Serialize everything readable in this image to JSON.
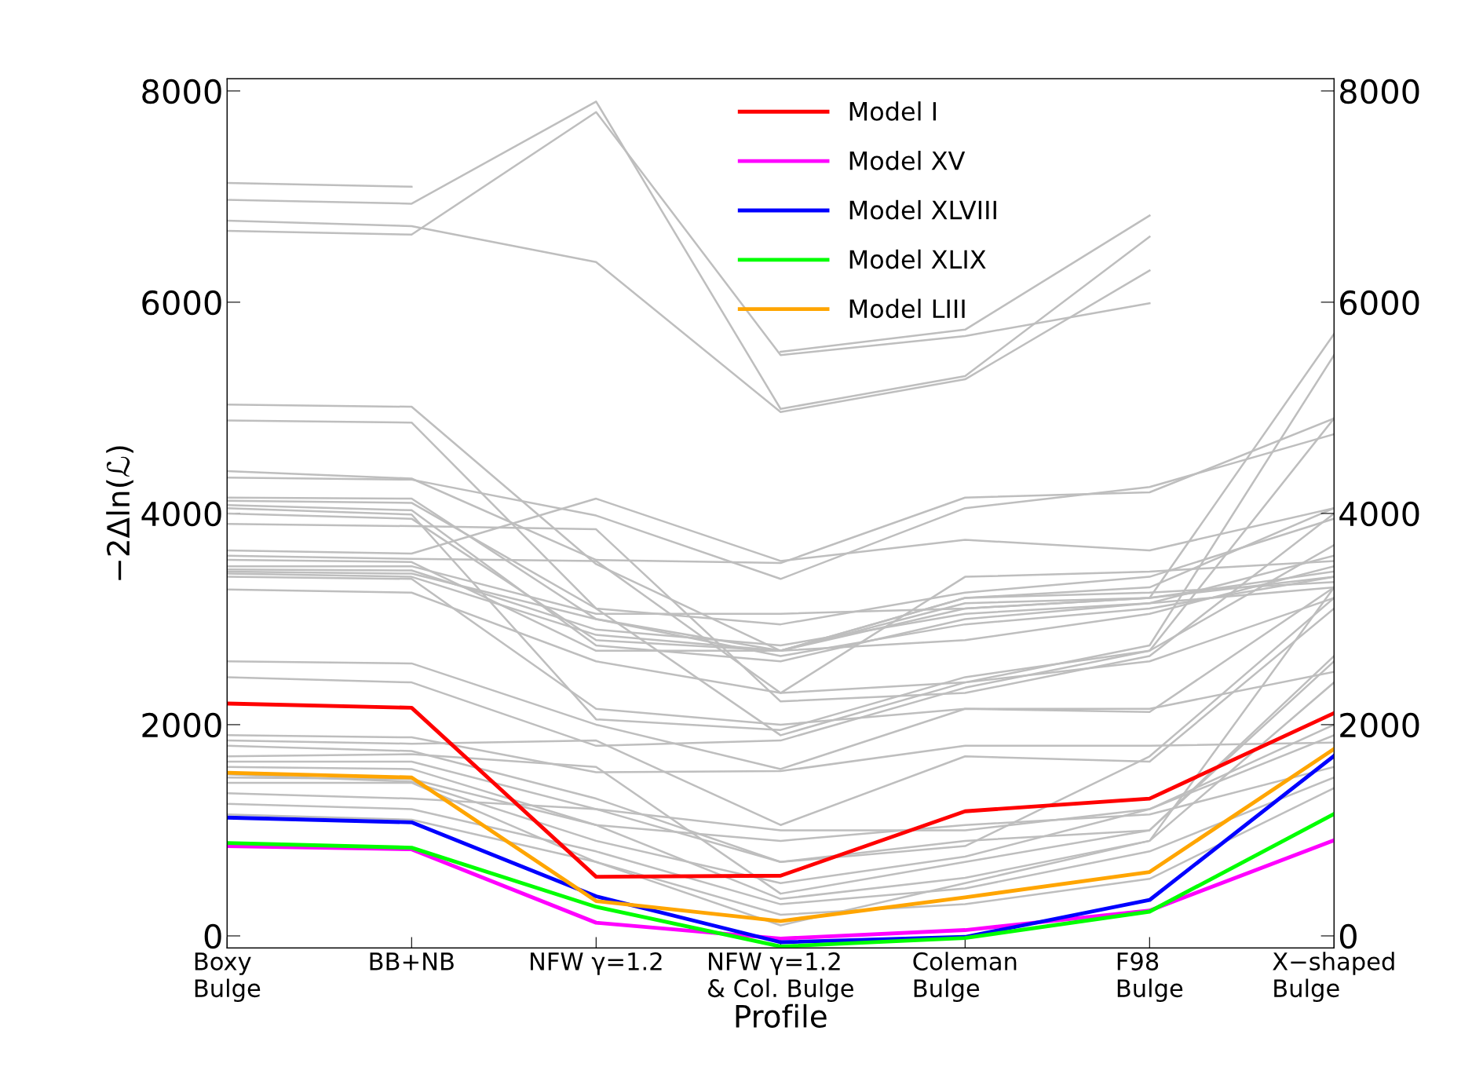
{
  "chart_data": {
    "type": "line",
    "xlabel": "Profile",
    "ylabel": "−2Δln(ℒ)",
    "categories": [
      "Boxy\nBulge",
      "BB+NB",
      "NFW γ=1.2",
      "NFW γ=1.2\n& Col. Bulge",
      "Coleman\nBulge",
      "F98\nBulge",
      "X−shaped\nBulge"
    ],
    "ylim": [
      -115,
      8115
    ],
    "yticks": [
      0,
      2000,
      4000,
      6000,
      8000
    ],
    "y2lim": [
      -115,
      8115
    ],
    "y2ticks": [
      0,
      2000,
      4000,
      6000,
      8000
    ],
    "grid": false,
    "legend": "top",
    "marker": "none",
    "line_style": "solid",
    "series": [
      {
        "color": "#bebebe",
        "values": [
          7129,
          7093,
          null,
          5530,
          5740,
          6820,
          null
        ]
      },
      {
        "color": "#bebebe",
        "values": [
          6969,
          6933,
          7900,
          4990,
          5300,
          6620,
          null
        ]
      },
      {
        "color": "#bebebe",
        "values": [
          6773,
          6720,
          6380,
          4960,
          5270,
          6300,
          null
        ]
      },
      {
        "color": "#bebebe",
        "values": [
          6676,
          6640,
          7800,
          5500,
          5680,
          5990,
          null
        ]
      },
      {
        "color": "#bebebe",
        "values": [
          5030,
          5010,
          3520,
          2700,
          3100,
          3200,
          5700
        ]
      },
      {
        "color": "#bebebe",
        "values": [
          4880,
          4860,
          3100,
          1900,
          2400,
          2750,
          5500
        ]
      },
      {
        "color": "#bebebe",
        "values": [
          4400,
          4330,
          3560,
          3530,
          4150,
          4200,
          4900
        ]
      },
      {
        "color": "#bebebe",
        "values": [
          4340,
          4320,
          3980,
          3380,
          4050,
          4250,
          4750
        ]
      },
      {
        "color": "#bebebe",
        "values": [
          4150,
          4140,
          3000,
          2700,
          3200,
          3300,
          4050
        ]
      },
      {
        "color": "#bebebe",
        "values": [
          4120,
          4100,
          3100,
          2950,
          3250,
          3400,
          3950
        ]
      },
      {
        "color": "#bebebe",
        "values": [
          4080,
          4030,
          2750,
          2600,
          3000,
          3150,
          3600
        ]
      },
      {
        "color": "#bebebe",
        "values": [
          4050,
          3990,
          2050,
          1950,
          2450,
          2700,
          4900
        ]
      },
      {
        "color": "#bebebe",
        "values": [
          4000,
          3950,
          2800,
          2700,
          3150,
          3200,
          3400
        ]
      },
      {
        "color": "#bebebe",
        "values": [
          3900,
          3880,
          3850,
          2220,
          2300,
          2650,
          4000
        ]
      },
      {
        "color": "#bebebe",
        "values": [
          3650,
          3620,
          4140,
          3550,
          3750,
          3650,
          4050
        ]
      },
      {
        "color": "#bebebe",
        "values": [
          3600,
          3570,
          3550,
          2300,
          3400,
          3450,
          3550
        ]
      },
      {
        "color": "#bebebe",
        "values": [
          3560,
          3540,
          2700,
          2700,
          3200,
          3250,
          3350
        ]
      },
      {
        "color": "#bebebe",
        "values": [
          3500,
          3500,
          3050,
          3050,
          3100,
          3200,
          3450
        ]
      },
      {
        "color": "#bebebe",
        "values": [
          3470,
          3460,
          2900,
          2750,
          3050,
          3150,
          3300
        ]
      },
      {
        "color": "#bebebe",
        "values": [
          3450,
          3430,
          3000,
          2650,
          2950,
          3100,
          3400
        ]
      },
      {
        "color": "#bebebe",
        "values": [
          3430,
          3400,
          2850,
          2700,
          2800,
          3050,
          3500
        ]
      },
      {
        "color": "#bebebe",
        "values": [
          3400,
          3380,
          2150,
          2000,
          2150,
          2150,
          2500
        ]
      },
      {
        "color": "#bebebe",
        "values": [
          3280,
          3250,
          2600,
          2300,
          2400,
          2600,
          3200
        ]
      },
      {
        "color": "#bebebe",
        "values": [
          2600,
          2580,
          2000,
          1580,
          2150,
          2120,
          3300
        ]
      },
      {
        "color": "#bebebe",
        "values": [
          2450,
          2400,
          1800,
          1850,
          2350,
          2700,
          3700
        ]
      },
      {
        "color": "#bebebe",
        "values": [
          1900,
          1880,
          1550,
          1560,
          1800,
          1800,
          1830
        ]
      },
      {
        "color": "#bebebe",
        "values": [
          1850,
          1820,
          1850,
          1050,
          1700,
          1650,
          3100
        ]
      },
      {
        "color": "#bebebe",
        "values": [
          1800,
          1750,
          1300,
          700,
          850,
          1700,
          3200
        ]
      },
      {
        "color": "#bebebe",
        "values": [
          1700,
          1720,
          1600,
          400,
          700,
          1000,
          2600
        ]
      },
      {
        "color": "#bebebe",
        "values": [
          1650,
          1650,
          1200,
          700,
          900,
          1000,
          2650
        ]
      },
      {
        "color": "#bebebe",
        "values": [
          1600,
          1580,
          1050,
          350,
          550,
          900,
          2400
        ]
      },
      {
        "color": "#bebebe",
        "values": [
          1530,
          1460,
          900,
          500,
          750,
          1200,
          2000
        ]
      },
      {
        "color": "#bebebe",
        "values": [
          1500,
          1485,
          1050,
          900,
          1050,
          1150,
          1600
        ]
      },
      {
        "color": "#bebebe",
        "values": [
          1450,
          1450,
          700,
          100,
          500,
          900,
          3300
        ]
      },
      {
        "color": "#bebebe",
        "values": [
          1350,
          1300,
          1200,
          1000,
          1000,
          1200,
          1900
        ]
      },
      {
        "color": "#bebebe",
        "values": [
          1250,
          1200,
          800,
          300,
          450,
          800,
          1500
        ]
      },
      {
        "color": "#bebebe",
        "values": [
          1150,
          1100,
          700,
          200,
          300,
          540,
          1400
        ]
      },
      {
        "name": "Model I",
        "color": "#ff0000",
        "values": [
          2200,
          2160,
          560,
          570,
          1180,
          1300,
          2110
        ]
      },
      {
        "name": "Model XV",
        "color": "#ff00ff",
        "values": [
          850,
          820,
          125,
          -25,
          55,
          240,
          905
        ]
      },
      {
        "name": "Model XLVIII",
        "color": "#0000ff",
        "values": [
          1120,
          1075,
          375,
          -60,
          -10,
          340,
          1705
        ]
      },
      {
        "name": "Model XLIX",
        "color": "#00ff00",
        "values": [
          880,
          835,
          275,
          -100,
          -20,
          230,
          1155
        ]
      },
      {
        "name": "Model LIII",
        "color": "#ffa500",
        "values": [
          1545,
          1500,
          330,
          140,
          365,
          605,
          1770
        ]
      }
    ]
  }
}
